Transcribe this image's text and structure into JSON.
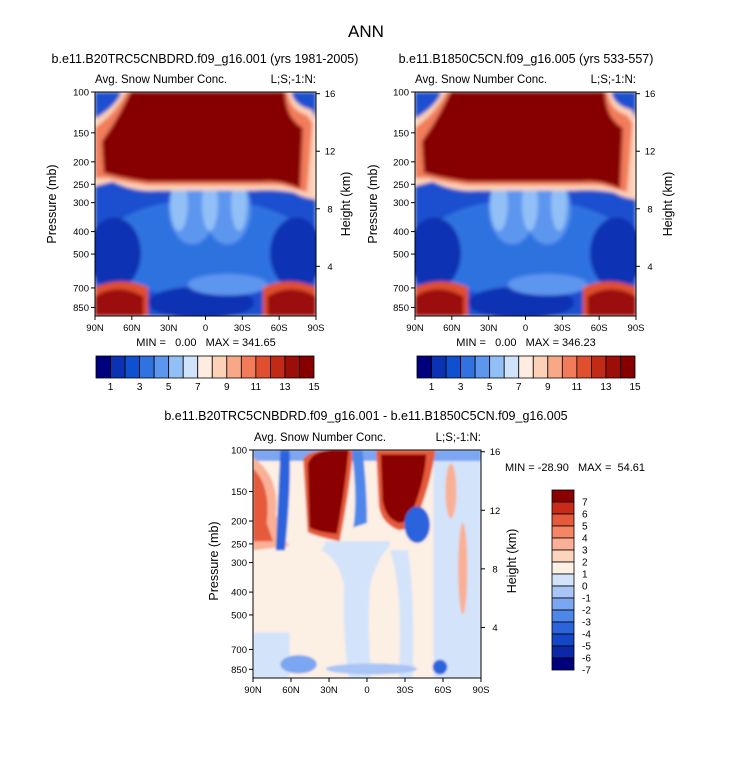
{
  "page_title": "ANN",
  "colors": {
    "full_fill": [
      "#00007f",
      "#0a32b3",
      "#0e50d0",
      "#2f72e0",
      "#5c96ef",
      "#93bff7",
      "#cfe3fb",
      "#fdecdf",
      "#fcd1b7",
      "#f8a887",
      "#f27b5a",
      "#e0502f",
      "#c22a18",
      "#9c0e08",
      "#870000"
    ],
    "diff_fill": [
      "#00007f",
      "#0a28a8",
      "#1446c8",
      "#2c64dc",
      "#4f86ea",
      "#7ba6f2",
      "#a8c5f6",
      "#d3e3fa",
      "#fcefe4",
      "#fcd5bc",
      "#f9b096",
      "#f48665",
      "#e55a3a",
      "#c82b1a",
      "#8b0000"
    ]
  },
  "chart_data": [
    {
      "type": "heatmap",
      "title": "b.e11.B20TRC5CNBDRD.f09_g16.001 (yrs 1981-2005)",
      "left_string": "Avg. Snow Number Conc.",
      "right_string": "L;S;-1:N:",
      "ylabel": "Pressure (mb)",
      "ylabel_right": "Height (km)",
      "xticks": [
        "90N",
        "60N",
        "30N",
        "0",
        "30S",
        "60S",
        "90S"
      ],
      "xlim": [
        -90,
        90
      ],
      "yticks": [
        "100",
        "150",
        "200",
        "250",
        "300",
        "400",
        "500",
        "700",
        "850"
      ],
      "y_values": [
        100,
        150,
        200,
        250,
        300,
        400,
        500,
        700,
        850
      ],
      "ylim": [
        100,
        925
      ],
      "y_right_ticks": [
        "16",
        "12",
        "8",
        "4"
      ],
      "y_right_values": [
        16,
        12,
        8,
        4
      ],
      "stats": "MIN =   0.00   MAX = 341.65",
      "min": 0.0,
      "max": 341.65,
      "colorbar_labels": [
        "1",
        "3",
        "5",
        "7",
        "9",
        "11",
        "13",
        "15"
      ],
      "colorbar_levels": [
        1,
        2,
        3,
        4,
        5,
        6,
        7,
        8,
        9,
        10,
        11,
        12,
        13,
        14,
        15
      ]
    },
    {
      "type": "heatmap",
      "title": "b.e11.B1850C5CN.f09_g16.005 (yrs 533-557)",
      "left_string": "Avg. Snow Number Conc.",
      "right_string": "L;S;-1:N:",
      "ylabel": "Pressure (mb)",
      "ylabel_right": "Height (km)",
      "xticks": [
        "90N",
        "60N",
        "30N",
        "0",
        "30S",
        "60S",
        "90S"
      ],
      "xlim": [
        -90,
        90
      ],
      "yticks": [
        "100",
        "150",
        "200",
        "250",
        "300",
        "400",
        "500",
        "700",
        "850"
      ],
      "y_values": [
        100,
        150,
        200,
        250,
        300,
        400,
        500,
        700,
        850
      ],
      "ylim": [
        100,
        925
      ],
      "y_right_ticks": [
        "16",
        "12",
        "8",
        "4"
      ],
      "y_right_values": [
        16,
        12,
        8,
        4
      ],
      "stats": "MIN =   0.00   MAX = 346.23",
      "min": 0.0,
      "max": 346.23,
      "colorbar_labels": [
        "1",
        "3",
        "5",
        "7",
        "9",
        "11",
        "13",
        "15"
      ],
      "colorbar_levels": [
        1,
        2,
        3,
        4,
        5,
        6,
        7,
        8,
        9,
        10,
        11,
        12,
        13,
        14,
        15
      ]
    },
    {
      "type": "heatmap",
      "title": "b.e11.B20TRC5CNBDRD.f09_g16.001 - b.e11.B1850C5CN.f09_g16.005",
      "left_string": "Avg. Snow Number Conc.",
      "right_string": "L;S;-1:N:",
      "ylabel": "Pressure (mb)",
      "ylabel_right": "Height (km)",
      "xticks": [
        "90N",
        "60N",
        "30N",
        "0",
        "30S",
        "60S",
        "90S"
      ],
      "xlim": [
        -90,
        90
      ],
      "yticks": [
        "100",
        "150",
        "200",
        "250",
        "300",
        "400",
        "500",
        "700",
        "850"
      ],
      "y_values": [
        100,
        150,
        200,
        250,
        300,
        400,
        500,
        700,
        850
      ],
      "ylim": [
        100,
        925
      ],
      "y_right_ticks": [
        "16",
        "12",
        "8",
        "4"
      ],
      "y_right_values": [
        16,
        12,
        8,
        4
      ],
      "stats": "MIN = -28.90   MAX =  54.61",
      "min": -28.9,
      "max": 54.61,
      "colorbar_labels": [
        "7",
        "6",
        "5",
        "4",
        "3",
        "2",
        "1",
        "0",
        "-1",
        "-2",
        "-3",
        "-4",
        "-5",
        "-6",
        "-7"
      ],
      "colorbar_levels": [
        7,
        6,
        5,
        4,
        3,
        2,
        1,
        0,
        -1,
        -2,
        -3,
        -4,
        -5,
        -6,
        -7
      ]
    }
  ]
}
